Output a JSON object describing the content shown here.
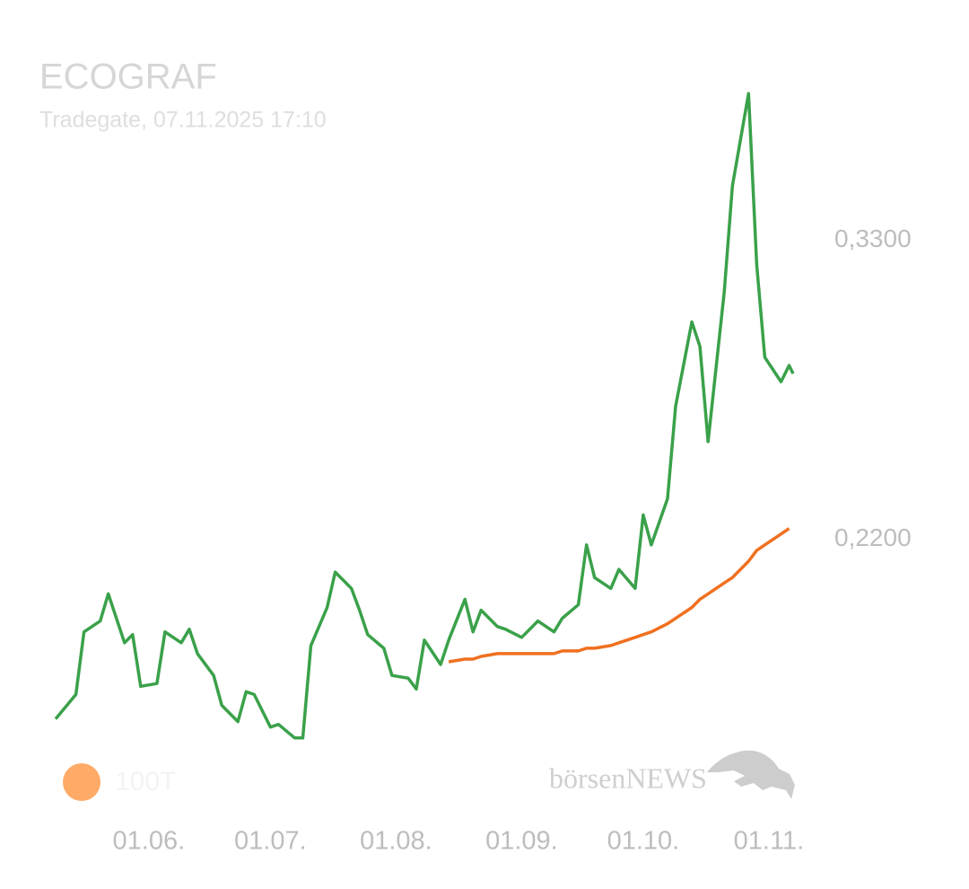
{
  "chart_data": {
    "type": "line",
    "title": "ECOGRAF",
    "subtitle": "Tradegate, 07.11.2025 17:10",
    "watermark": "börsenNEWS",
    "x": [
      "09.05.",
      "14.05.",
      "16.05.",
      "20.05.",
      "22.05.",
      "26.05.",
      "28.05.",
      "30.05.",
      "03.06.",
      "05.06.",
      "09.06.",
      "11.06.",
      "13.06.",
      "17.06.",
      "19.06.",
      "23.06.",
      "25.06.",
      "27.06.",
      "01.07.",
      "03.07.",
      "07.07.",
      "09.07.",
      "11.07.",
      "15.07.",
      "17.07.",
      "21.07.",
      "23.07.",
      "25.07.",
      "29.07.",
      "31.07.",
      "04.08.",
      "06.08.",
      "08.08.",
      "12.08.",
      "14.08.",
      "18.08.",
      "20.08.",
      "22.08.",
      "26.08.",
      "28.08.",
      "01.09.",
      "05.09.",
      "09.09.",
      "11.09.",
      "15.09.",
      "17.09.",
      "19.09.",
      "23.09.",
      "25.09.",
      "29.09.",
      "01.10.",
      "03.10.",
      "07.10.",
      "09.10.",
      "13.10.",
      "15.10.",
      "17.10.",
      "21.10.",
      "23.10.",
      "27.10.",
      "29.10.",
      "31.10.",
      "04.11.",
      "06.11.",
      "07.11."
    ],
    "series": [
      {
        "color": "#3aa14a",
        "values": [
          0.154,
          0.163,
          0.186,
          0.19,
          0.2,
          0.182,
          0.185,
          0.166,
          0.167,
          0.186,
          0.182,
          0.187,
          0.178,
          0.17,
          0.159,
          0.153,
          0.164,
          0.163,
          0.151,
          0.152,
          0.147,
          0.147,
          0.181,
          0.195,
          0.208,
          0.202,
          0.194,
          0.185,
          0.18,
          0.17,
          0.169,
          0.165,
          0.183,
          0.174,
          0.183,
          0.198,
          0.186,
          0.194,
          0.188,
          0.187,
          0.184,
          0.19,
          0.186,
          0.191,
          0.196,
          0.218,
          0.206,
          0.202,
          0.209,
          0.202,
          0.229,
          0.218,
          0.235,
          0.269,
          0.3,
          0.291,
          0.256,
          0.311,
          0.35,
          0.384,
          0.321,
          0.287,
          0.278,
          0.284,
          0.281
        ]
      },
      {
        "name": "100T",
        "color": "#f07020",
        "legend_color": "#ffaa66",
        "values": [
          null,
          null,
          null,
          null,
          null,
          null,
          null,
          null,
          null,
          null,
          null,
          null,
          null,
          null,
          null,
          null,
          null,
          null,
          null,
          null,
          null,
          null,
          null,
          null,
          null,
          null,
          null,
          null,
          null,
          null,
          null,
          null,
          null,
          null,
          0.175,
          0.176,
          0.176,
          0.177,
          0.178,
          0.178,
          0.178,
          0.178,
          0.178,
          0.179,
          0.179,
          0.18,
          0.18,
          0.181,
          0.182,
          0.184,
          0.185,
          0.186,
          0.189,
          0.191,
          0.195,
          0.198,
          0.2,
          0.204,
          0.206,
          0.212,
          0.216,
          0.218,
          0.222,
          0.224,
          null
        ]
      }
    ],
    "xlim": [
      "09.05.",
      "07.11."
    ],
    "xticks": [
      "01.06.",
      "01.07.",
      "01.08.",
      "01.09.",
      "01.10.",
      "01.11."
    ],
    "ylim": [
      0.14,
      0.39
    ],
    "yticks": [
      {
        "value": 0.22,
        "label": "0,2200"
      },
      {
        "value": 0.33,
        "label": "0,3300"
      }
    ],
    "grid": false
  }
}
